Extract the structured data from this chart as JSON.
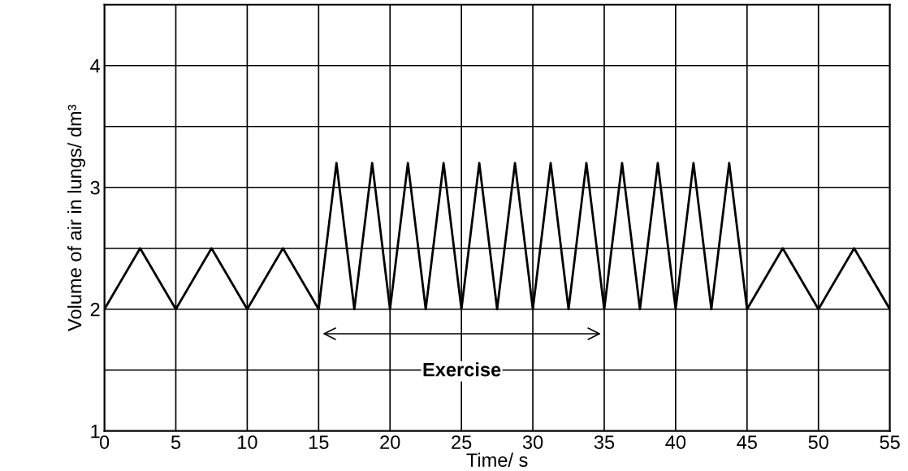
{
  "chart_data": {
    "type": "line",
    "xlabel": "Time/ s",
    "ylabel": "Volume of air in lungs/ dm³",
    "series": [
      {
        "color": "#000000",
        "x": [
          0,
          2.5,
          5,
          7.5,
          10,
          12.5,
          15,
          16.25,
          17.5,
          18.75,
          20,
          21.25,
          22.5,
          23.75,
          25,
          26.25,
          27.5,
          28.75,
          30,
          31.25,
          32.5,
          33.75,
          35,
          36.25,
          37.5,
          38.75,
          40,
          41.25,
          42.5,
          43.75,
          45,
          47.5,
          50,
          52.5,
          55
        ],
        "values": [
          2,
          2.5,
          2,
          2.5,
          2,
          2.5,
          2,
          3.2,
          2,
          3.2,
          2,
          3.2,
          2,
          3.2,
          2,
          3.2,
          2,
          3.2,
          2,
          3.2,
          2,
          3.2,
          2,
          3.2,
          2,
          3.2,
          2,
          3.2,
          2,
          3.2,
          2,
          2.5,
          2,
          2.5,
          2
        ]
      }
    ],
    "xlim": [
      0,
      55
    ],
    "xticks": [
      0,
      5,
      10,
      15,
      20,
      25,
      30,
      35,
      40,
      45,
      50,
      55
    ],
    "ylim": [
      1,
      4.5
    ],
    "yticks": [
      1,
      {
        "value": 1.5,
        "label": null
      },
      2,
      {
        "value": 2.5,
        "label": null
      },
      3,
      {
        "value": 3.5,
        "label": null
      },
      4
    ],
    "grid": true,
    "marker": "none",
    "line_style": "solid",
    "legend": false,
    "annotations": [
      "Exercise"
    ]
  }
}
